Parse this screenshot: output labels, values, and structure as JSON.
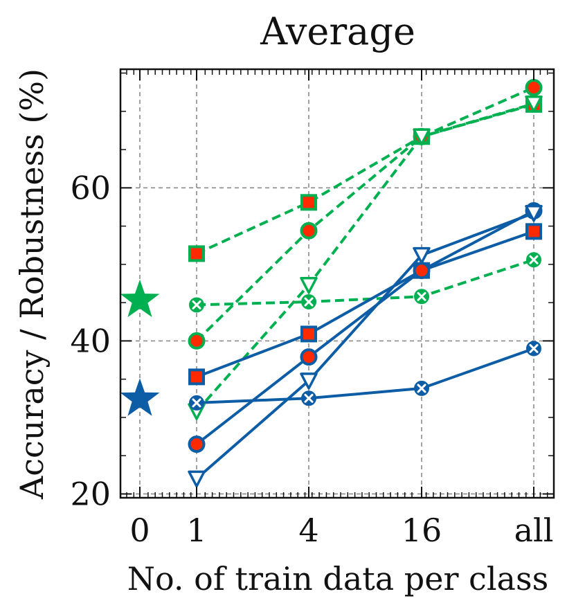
{
  "chart_data": {
    "type": "line",
    "title": "Average",
    "xlabel": "No. of train data per class",
    "ylabel": "Accuracy / Robustness (%)",
    "x_categories": [
      "0",
      "1",
      "4",
      "16",
      "all"
    ],
    "y_ticks": [
      "20",
      "40",
      "60"
    ],
    "ylim": [
      19.5,
      75.5
    ],
    "grid": true,
    "colors": {
      "green": "#00b050",
      "blue": "#0c5da5",
      "red_fill": "#ff2a00"
    },
    "zero_shot": [
      {
        "name": "green-star",
        "color": "green",
        "x_index": 0,
        "y": 45.3
      },
      {
        "name": "blue-star",
        "color": "blue",
        "x_index": 0,
        "y": 32.4
      }
    ],
    "series": [
      {
        "name": "green-square",
        "color": "green",
        "dash": true,
        "marker": "square",
        "x_index": [
          1,
          2,
          3,
          4
        ],
        "values": [
          51.4,
          58.1,
          66.7,
          70.9
        ]
      },
      {
        "name": "green-circle",
        "color": "green",
        "dash": true,
        "marker": "circle",
        "x_index": [
          1,
          2,
          3,
          4
        ],
        "values": [
          40.0,
          54.4,
          66.7,
          73.1
        ]
      },
      {
        "name": "green-triangle",
        "color": "green",
        "dash": true,
        "marker": "triangle",
        "x_index": [
          1,
          2,
          3,
          4
        ],
        "values": [
          30.8,
          47.3,
          66.7,
          71.0
        ]
      },
      {
        "name": "green-x",
        "color": "green",
        "dash": true,
        "marker": "xmark",
        "x_index": [
          1,
          2,
          3,
          4
        ],
        "values": [
          44.7,
          45.1,
          45.8,
          50.6
        ]
      },
      {
        "name": "blue-square",
        "color": "blue",
        "dash": false,
        "marker": "square",
        "x_index": [
          1,
          2,
          3,
          4
        ],
        "values": [
          35.3,
          40.9,
          49.2,
          54.3
        ]
      },
      {
        "name": "blue-circle",
        "color": "blue",
        "dash": false,
        "marker": "circle",
        "x_index": [
          1,
          2,
          3,
          4
        ],
        "values": [
          26.5,
          37.9,
          49.2,
          57.0
        ]
      },
      {
        "name": "blue-triangle",
        "color": "blue",
        "dash": false,
        "marker": "triangle",
        "x_index": [
          1,
          2,
          3,
          4
        ],
        "values": [
          22.0,
          34.8,
          51.2,
          56.7
        ]
      },
      {
        "name": "blue-x",
        "color": "blue",
        "dash": false,
        "marker": "xmark",
        "x_index": [
          1,
          2,
          3,
          4
        ],
        "values": [
          31.9,
          32.5,
          33.8,
          39.0
        ]
      }
    ]
  }
}
